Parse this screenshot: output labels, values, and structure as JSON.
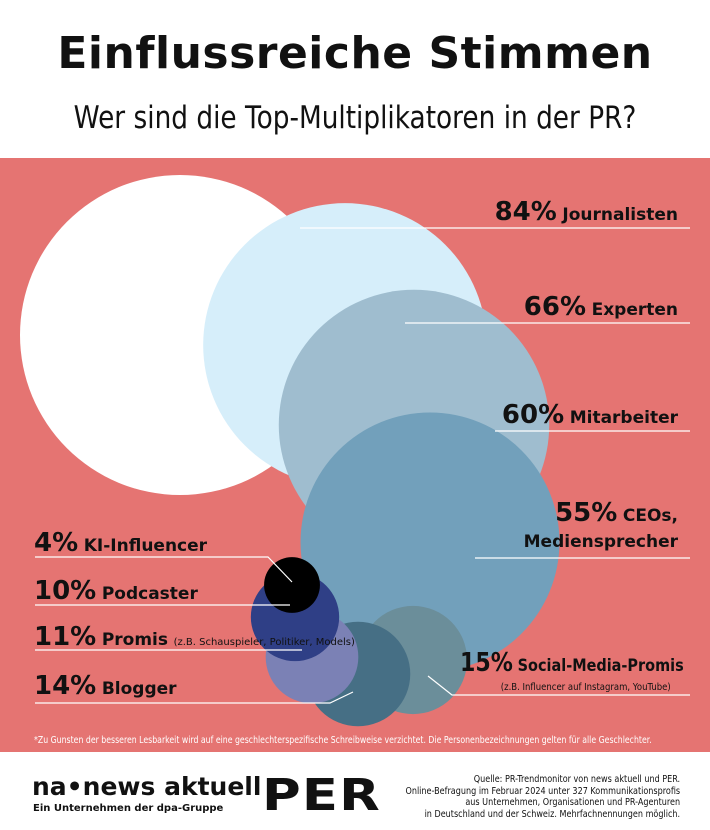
{
  "title": "Einflussreiche Stimmen",
  "subtitle": "Wer sind die Top-Multiplikatoren in der PR?",
  "colors": {
    "background": "#e57472"
  },
  "chart_data": {
    "type": "bubble",
    "title": "Einflussreiche Stimmen",
    "subtitle": "Wer sind die Top-Multiplikatoren in der PR?",
    "unit": "%",
    "items": [
      {
        "pct": "84%",
        "value": 84,
        "label": "Journalisten",
        "note": "",
        "color": "#ffffff"
      },
      {
        "pct": "66%",
        "value": 66,
        "label": "Experten",
        "note": "",
        "color": "#d6eefa"
      },
      {
        "pct": "60%",
        "value": 60,
        "label": "Mitarbeiter",
        "note": "",
        "color": "#9fbdcf"
      },
      {
        "pct": "55%",
        "value": 55,
        "label": "CEOs,",
        "label2": "Mediensprecher",
        "note": "",
        "color": "#72a0bb"
      },
      {
        "pct": "15%",
        "value": 15,
        "label": "Social-Media-Promis",
        "note": "(z.B. Influencer auf Instagram, YouTube)",
        "color": "#6b8e9a"
      },
      {
        "pct": "14%",
        "value": 14,
        "label": "Blogger",
        "note": "",
        "color": "#466f85"
      },
      {
        "pct": "11%",
        "value": 11,
        "label": "Promis",
        "note": "(z.B. Schauspieler, Politiker, Models)",
        "color": "#7b81b5"
      },
      {
        "pct": "10%",
        "value": 10,
        "label": "Podcaster",
        "note": "",
        "color": "#2f3f86"
      },
      {
        "pct": "4%",
        "value": 4,
        "label": "KI-Influencer",
        "note": "",
        "color": "#000000"
      }
    ]
  },
  "footnote": "*Zu Gunsten der besseren Lesbarkeit wird auf eine geschlechterspezifische Schreibweise verzichtet. Die Personenbezeichnungen gelten für alle Geschlechter.",
  "footer": {
    "logo1": "na•news aktuell",
    "logo1_sub": "Ein Unternehmen der dpa-Gruppe",
    "logo2": "PER",
    "source": [
      "Quelle: PR-Trendmonitor von news aktuell und PER.",
      "Online-Befragung im Februar 2024 unter 327 Kommunikationsprofis",
      "aus Unternehmen, Organisationen und PR-Agenturen",
      "in Deutschland und der Schweiz. Mehrfachnennungen möglich."
    ]
  }
}
